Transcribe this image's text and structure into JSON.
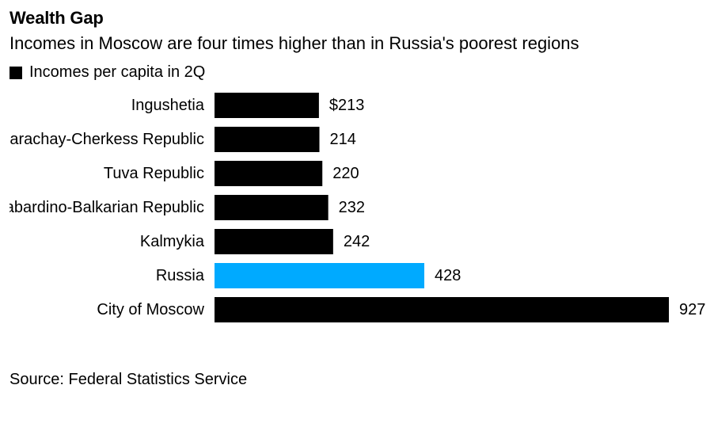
{
  "header": {
    "title": "Wealth Gap",
    "subtitle": "Incomes in Moscow are four times higher than in Russia's poorest regions"
  },
  "legend": {
    "label": "Incomes per capita in 2Q",
    "color": "#000000"
  },
  "footer": {
    "source": "Source: Federal Statistics Service"
  },
  "colors": {
    "bar": "#000000",
    "highlight": "#00aaff",
    "text": "#000000"
  },
  "chart_data": {
    "type": "bar",
    "orientation": "horizontal",
    "title": "Wealth Gap",
    "subtitle": "Incomes in Moscow are four times higher than in Russia's poorest regions",
    "categories": [
      "Ingushetia",
      "Karachay-Cherkess Republic",
      "Tuva Republic",
      "Kabardino-Balkarian Republic",
      "Kalmykia",
      "Russia",
      "City of Moscow"
    ],
    "series": [
      {
        "name": "Incomes per capita in 2Q",
        "values": [
          213,
          214,
          220,
          232,
          242,
          428,
          927
        ]
      }
    ],
    "data_labels": [
      "$213",
      "214",
      "220",
      "232",
      "242",
      "428",
      "927"
    ],
    "highlighted_category": "Russia",
    "xlim": [
      0,
      927
    ],
    "grid": false,
    "legend_position": "top-left",
    "source": "Source: Federal Statistics Service"
  }
}
